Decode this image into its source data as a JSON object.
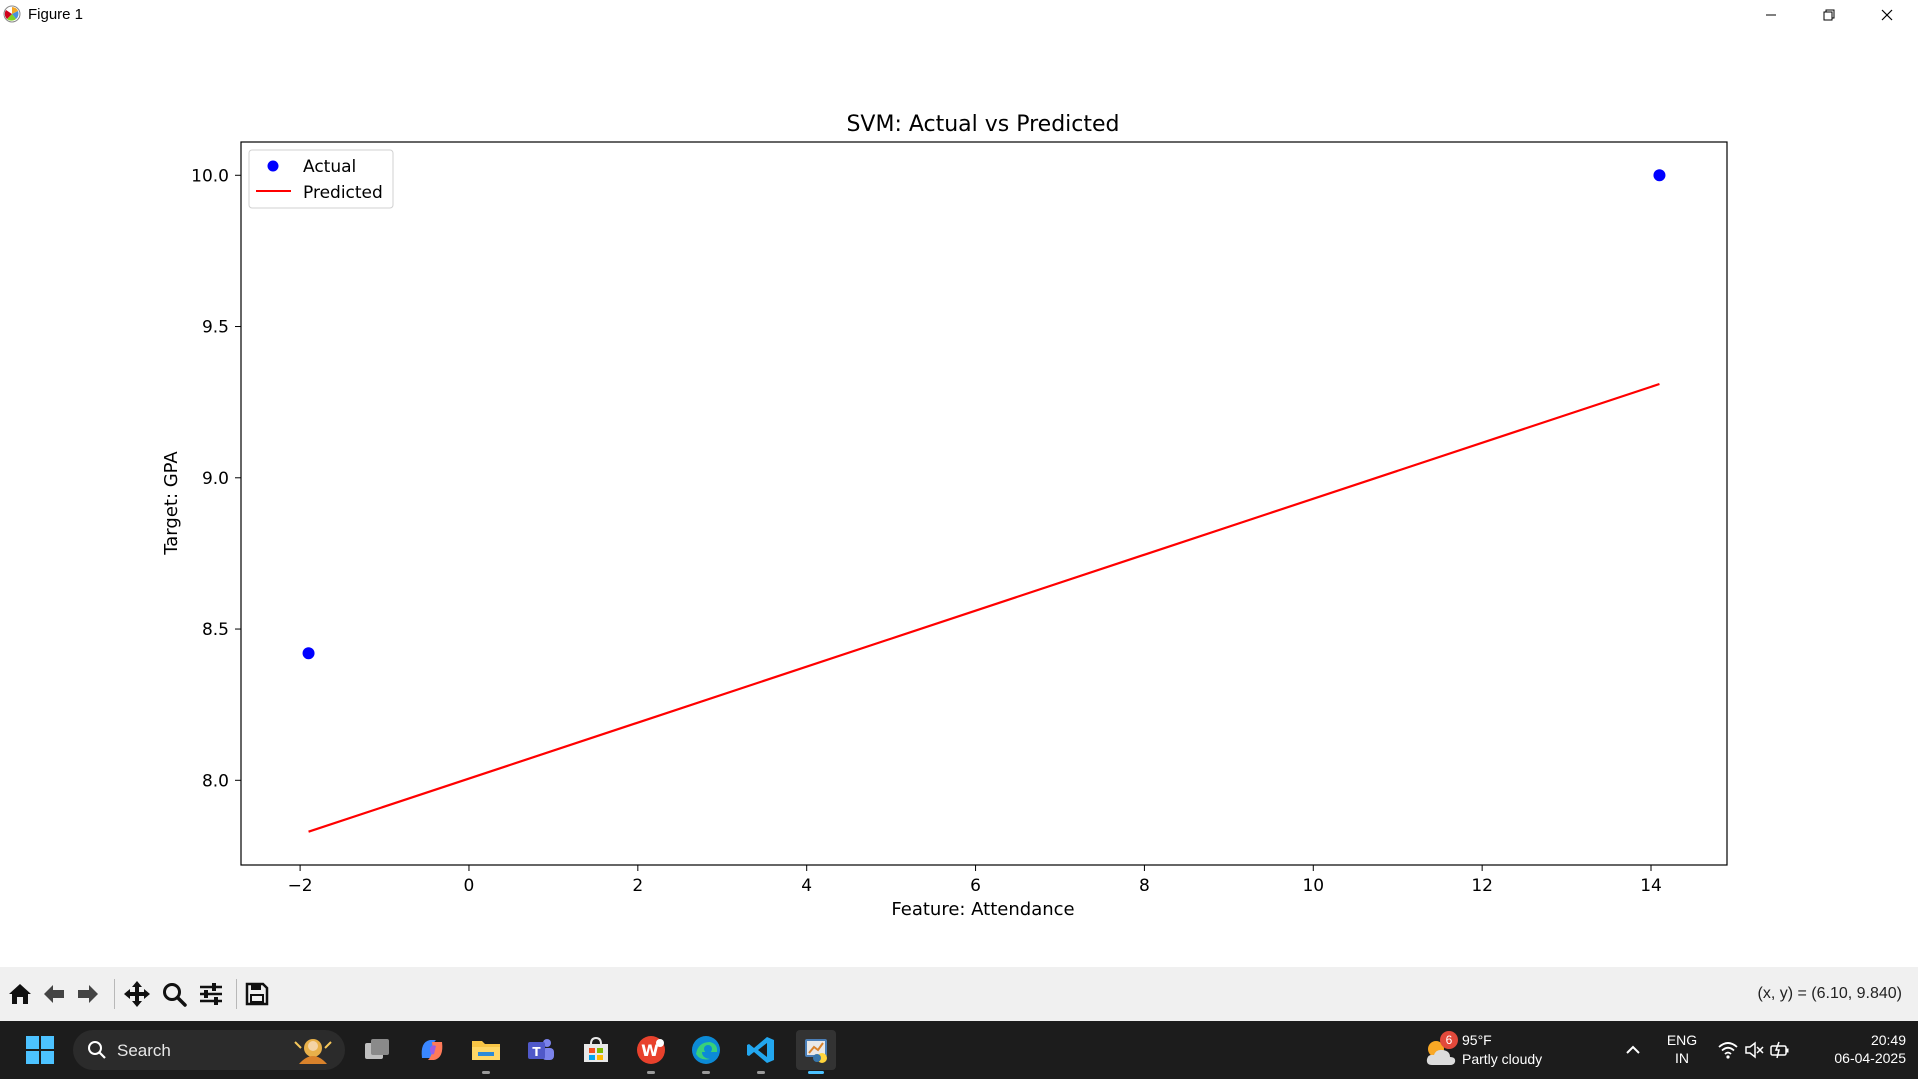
{
  "window": {
    "title": "Figure 1"
  },
  "chart_data": {
    "type": "scatter",
    "title": "SVM: Actual vs Predicted",
    "xlabel": "Feature: Attendance",
    "ylabel": "Target: GPA",
    "xlim": [
      -2.7,
      14.9
    ],
    "ylim": [
      7.72,
      10.11
    ],
    "xticks": [
      -2,
      0,
      2,
      4,
      6,
      8,
      10,
      12,
      14
    ],
    "xtick_labels": [
      "−2",
      "0",
      "2",
      "4",
      "6",
      "8",
      "10",
      "12",
      "14"
    ],
    "yticks": [
      8.0,
      8.5,
      9.0,
      9.5,
      10.0
    ],
    "ytick_labels": [
      "8.0",
      "8.5",
      "9.0",
      "9.5",
      "10.0"
    ],
    "grid": false,
    "legend_position": "top-left",
    "series": [
      {
        "name": "Actual",
        "kind": "scatter",
        "color": "#0000ff",
        "x": [
          -1.9,
          14.1
        ],
        "y": [
          8.42,
          10.0
        ]
      },
      {
        "name": "Predicted",
        "kind": "line",
        "color": "#ff0000",
        "x": [
          -1.9,
          14.1
        ],
        "y": [
          7.83,
          9.31
        ]
      }
    ]
  },
  "toolbar": {
    "coords": "(x, y) = (6.10, 9.840)"
  },
  "taskbar": {
    "search_placeholder": "Search",
    "weather": {
      "badge": "6",
      "temp": "95°F",
      "condition": "Partly cloudy"
    },
    "language": {
      "lang": "ENG",
      "region": "IN"
    },
    "clock": {
      "time": "20:49",
      "date": "06-04-2025"
    }
  }
}
